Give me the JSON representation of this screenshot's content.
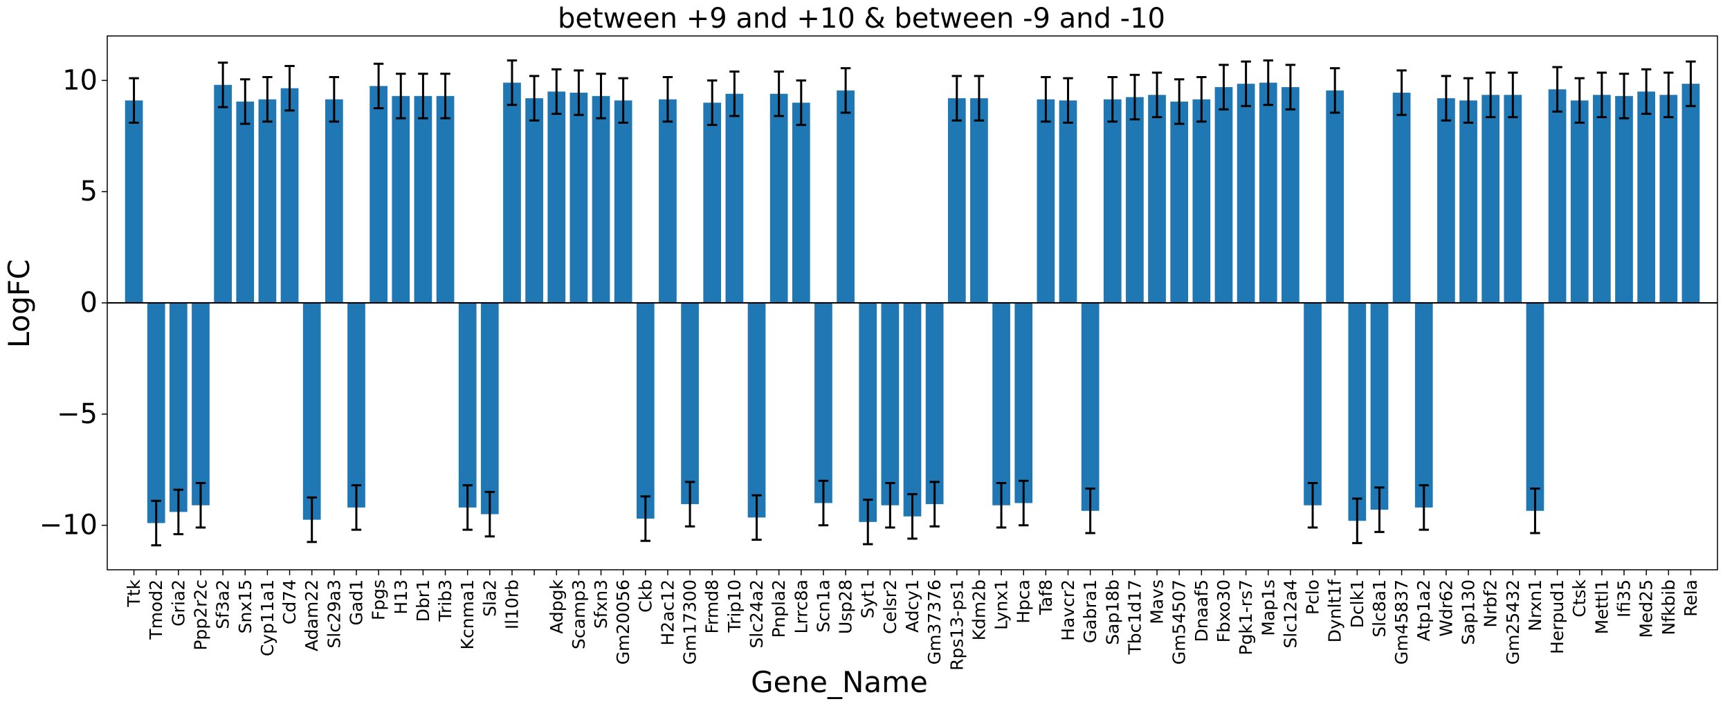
{
  "chart_data": {
    "type": "bar",
    "title": "between +9 and +10 & between -9 and -10",
    "xlabel": "Gene_Name",
    "ylabel": "LogFC",
    "ylim": [
      -12,
      12
    ],
    "yticks": [
      -10,
      -5,
      0,
      5,
      10
    ],
    "ytick_labels": [
      "−10",
      "−5",
      "0",
      "5",
      "10"
    ],
    "bar_color": "#1f77b4",
    "error_color": "#000000",
    "error_bar": 1.0,
    "grid": false,
    "legend": "none",
    "categories": [
      "Ttk",
      "Tmod2",
      "Gria2",
      "Ppp2r2c",
      "Sf3a2",
      "Snx15",
      "Cyp11a1",
      "Cd74",
      "Adam22",
      "Slc29a3",
      "Gad1",
      "Fpgs",
      "H13",
      "Dbr1",
      "Trib3",
      "Kcnma1",
      "Sla2",
      "Il10rb",
      "",
      "Adpgk",
      "Scamp3",
      "Sfxn3",
      "Gm20056",
      "Ckb",
      "H2ac12",
      "Gm17300",
      "Frmd8",
      "Trip10",
      "Slc24a2",
      "Pnpla2",
      "Lrrc8a",
      "Scn1a",
      "Usp28",
      "Syt1",
      "Celsr2",
      "Adcy1",
      "Gm37376",
      "Rps13-ps1",
      "Kdm2b",
      "Lynx1",
      "Hpca",
      "Taf8",
      "Havcr2",
      "Gabra1",
      "Sap18b",
      "Tbc1d17",
      "Mavs",
      "Gm54507",
      "Dnaaf5",
      "Fbxo30",
      "Pgk1-rs7",
      "Map1s",
      "Slc12a4",
      "Pclo",
      "Dynlt1f",
      "Dclk1",
      "Slc8a1",
      "Gm45837",
      "Atp1a2",
      "Wdr62",
      "Sap130",
      "Nrbf2",
      "Gm25432",
      "Nrxn1",
      "Herpud1",
      "Ctsk",
      "Mettl1",
      "Ifi35",
      "Med25",
      "Nfkbib",
      "Rela"
    ],
    "values": [
      9.1,
      -9.9,
      -9.4,
      -9.1,
      9.8,
      9.05,
      9.15,
      9.65,
      -9.75,
      9.15,
      -9.2,
      9.75,
      9.3,
      9.3,
      9.3,
      -9.2,
      -9.5,
      9.9,
      9.2,
      9.5,
      9.45,
      9.3,
      9.1,
      -9.7,
      9.15,
      -9.05,
      9.0,
      9.4,
      -9.65,
      9.4,
      9.0,
      -9.0,
      9.55,
      -9.85,
      -9.1,
      -9.6,
      -9.05,
      9.2,
      9.2,
      -9.1,
      -9.0,
      9.15,
      9.1,
      -9.35,
      9.15,
      9.25,
      9.35,
      9.05,
      9.15,
      9.7,
      9.85,
      9.9,
      9.7,
      -9.1,
      9.55,
      -9.8,
      -9.3,
      9.45,
      -9.2,
      9.2,
      9.1,
      9.35,
      9.35,
      -9.35,
      9.6,
      9.1,
      9.35,
      9.3,
      9.5,
      9.35,
      9.85
    ]
  }
}
